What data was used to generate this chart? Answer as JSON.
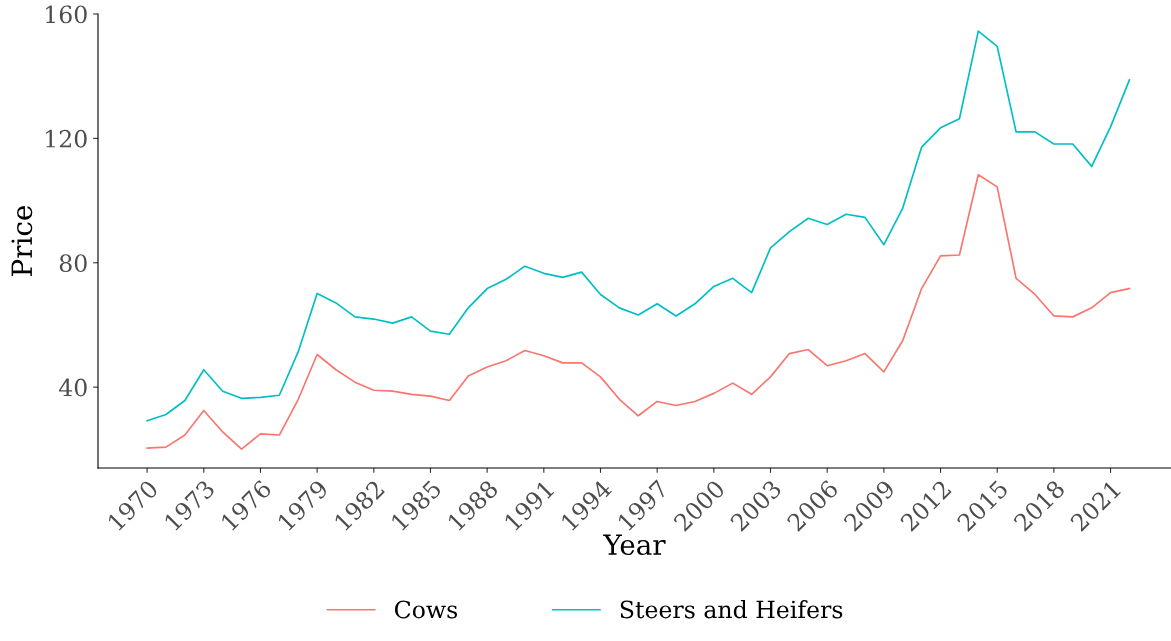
{
  "chart_data": {
    "type": "line",
    "xlabel": "Year",
    "ylabel": "Price",
    "x": [
      1970,
      1971,
      1972,
      1973,
      1974,
      1975,
      1976,
      1977,
      1978,
      1979,
      1980,
      1981,
      1982,
      1983,
      1984,
      1985,
      1986,
      1987,
      1988,
      1989,
      1990,
      1991,
      1992,
      1993,
      1994,
      1995,
      1996,
      1997,
      1998,
      1999,
      2000,
      2001,
      2002,
      2003,
      2004,
      2005,
      2006,
      2007,
      2008,
      2009,
      2010,
      2011,
      2012,
      2013,
      2014,
      2015,
      2016,
      2017,
      2018,
      2019,
      2020,
      2021,
      2022
    ],
    "series": [
      {
        "name": "Cows",
        "color": "#f8766d",
        "values": [
          20.4,
          20.7,
          24.6,
          32.5,
          25.6,
          20.1,
          25.0,
          24.6,
          36.1,
          50.5,
          45.6,
          41.6,
          39.0,
          38.7,
          37.7,
          37.1,
          35.7,
          43.6,
          46.5,
          48.5,
          51.8,
          50.1,
          47.8,
          47.8,
          43.3,
          36.1,
          30.8,
          35.4,
          34.1,
          35.4,
          38.0,
          41.3,
          37.7,
          43.3,
          50.8,
          52.1,
          46.9,
          48.5,
          50.8,
          44.9,
          55.0,
          71.7,
          82.2,
          82.5,
          108.3,
          104.4,
          75.0,
          69.8,
          62.9,
          62.6,
          65.5,
          70.4,
          71.7
        ]
      },
      {
        "name": "Steers and Heifers",
        "color": "#00bfc4",
        "values": [
          29.2,
          31.2,
          35.7,
          45.6,
          38.7,
          36.4,
          36.7,
          37.4,
          51.4,
          70.1,
          67.1,
          62.6,
          61.9,
          60.6,
          62.6,
          58.0,
          57.0,
          65.5,
          71.7,
          74.7,
          78.9,
          76.6,
          75.3,
          77.0,
          69.8,
          65.5,
          63.2,
          66.8,
          62.9,
          66.8,
          72.4,
          75.0,
          70.4,
          84.8,
          90.0,
          94.3,
          92.3,
          95.6,
          94.6,
          85.8,
          97.6,
          117.2,
          123.4,
          126.3,
          154.5,
          149.6,
          122.1,
          122.1,
          118.2,
          118.2,
          111.0,
          123.7,
          138.8
        ]
      }
    ],
    "xlim": [
      1967.4,
      2024.2
    ],
    "ylim": [
      14,
      160
    ],
    "xticks": [
      1970,
      1973,
      1976,
      1979,
      1982,
      1985,
      1988,
      1991,
      1994,
      1997,
      2000,
      2003,
      2006,
      2009,
      2012,
      2015,
      2018,
      2021
    ],
    "yticks": [
      40,
      80,
      120,
      160
    ],
    "grid": false,
    "legend": "bottom",
    "line_style": "solid",
    "marker": "none"
  }
}
